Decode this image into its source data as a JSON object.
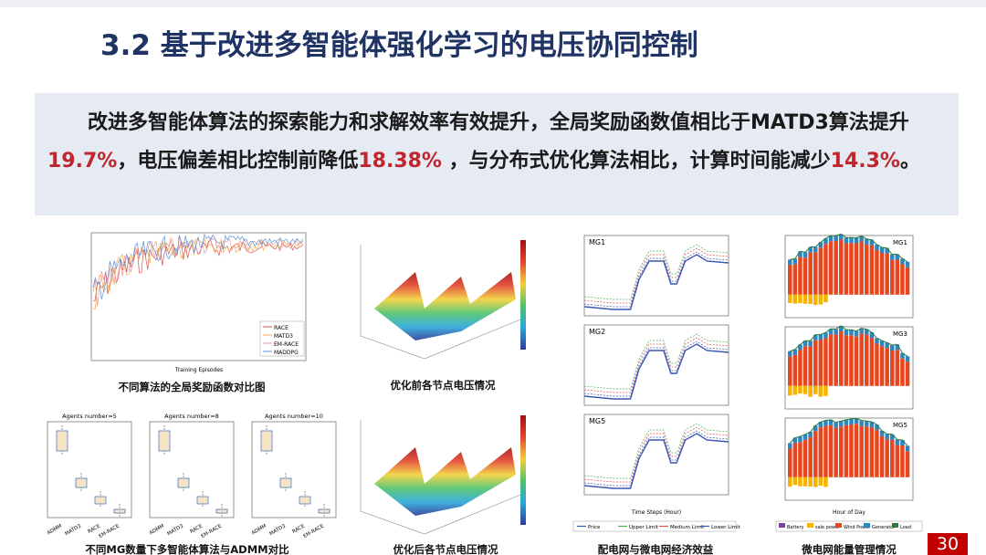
{
  "header": {
    "title": "3.2 基于改进多智能体强化学习的电压协同控制"
  },
  "summary": {
    "segments": [
      {
        "text": "改进多智能体算法的探索能力和求解效率有效提升，全局奖励函数值相比于MATD3算法提升",
        "highlight": false
      },
      {
        "text": "19.7%",
        "highlight": true
      },
      {
        "text": "，电压偏差相比控制前降低",
        "highlight": false
      },
      {
        "text": "18.38%",
        "highlight": true
      },
      {
        "text": " ，与分布式优化算法相比，计算时间能减少",
        "highlight": false
      },
      {
        "text": "14.3%",
        "highlight": true
      },
      {
        "text": "。",
        "highlight": false
      }
    ]
  },
  "figures": {
    "reward": {
      "caption": "不同算法的全局奖励函数对比图",
      "x_label": "Training Episodes",
      "legend": [
        "RACE",
        "MATD3",
        "EM-RACE",
        "MADDPG"
      ]
    },
    "boxplots": {
      "caption": "不同MG数量下多智能体算法与ADMM对比",
      "panels": [
        "Agents number=5",
        "Agents number=8",
        "Agents number=10"
      ],
      "categories": [
        "ADMM",
        "MATD3",
        "RACE",
        "EM-RACE"
      ]
    },
    "voltage_before": {
      "caption": "优化前各节点电压情况"
    },
    "voltage_after": {
      "caption": "优化后各节点电压情况"
    },
    "price": {
      "caption": "配电网与微电网经济效益",
      "panels": [
        "MG1",
        "MG2",
        "MG5"
      ],
      "x_label": "Time Steps (Hour)",
      "legend": [
        "Price",
        "Upper Limit",
        "Medium Limit",
        "Lower Limit"
      ]
    },
    "energy": {
      "caption": "微电网能量管理情况",
      "panels": [
        "MG1",
        "MG3",
        "MG5"
      ],
      "x_label": "Hour of Day",
      "legend": [
        "Battery",
        "sale power",
        "Wind Power",
        "Generator",
        "Load"
      ]
    }
  },
  "footer": {
    "page_number": "30"
  }
}
